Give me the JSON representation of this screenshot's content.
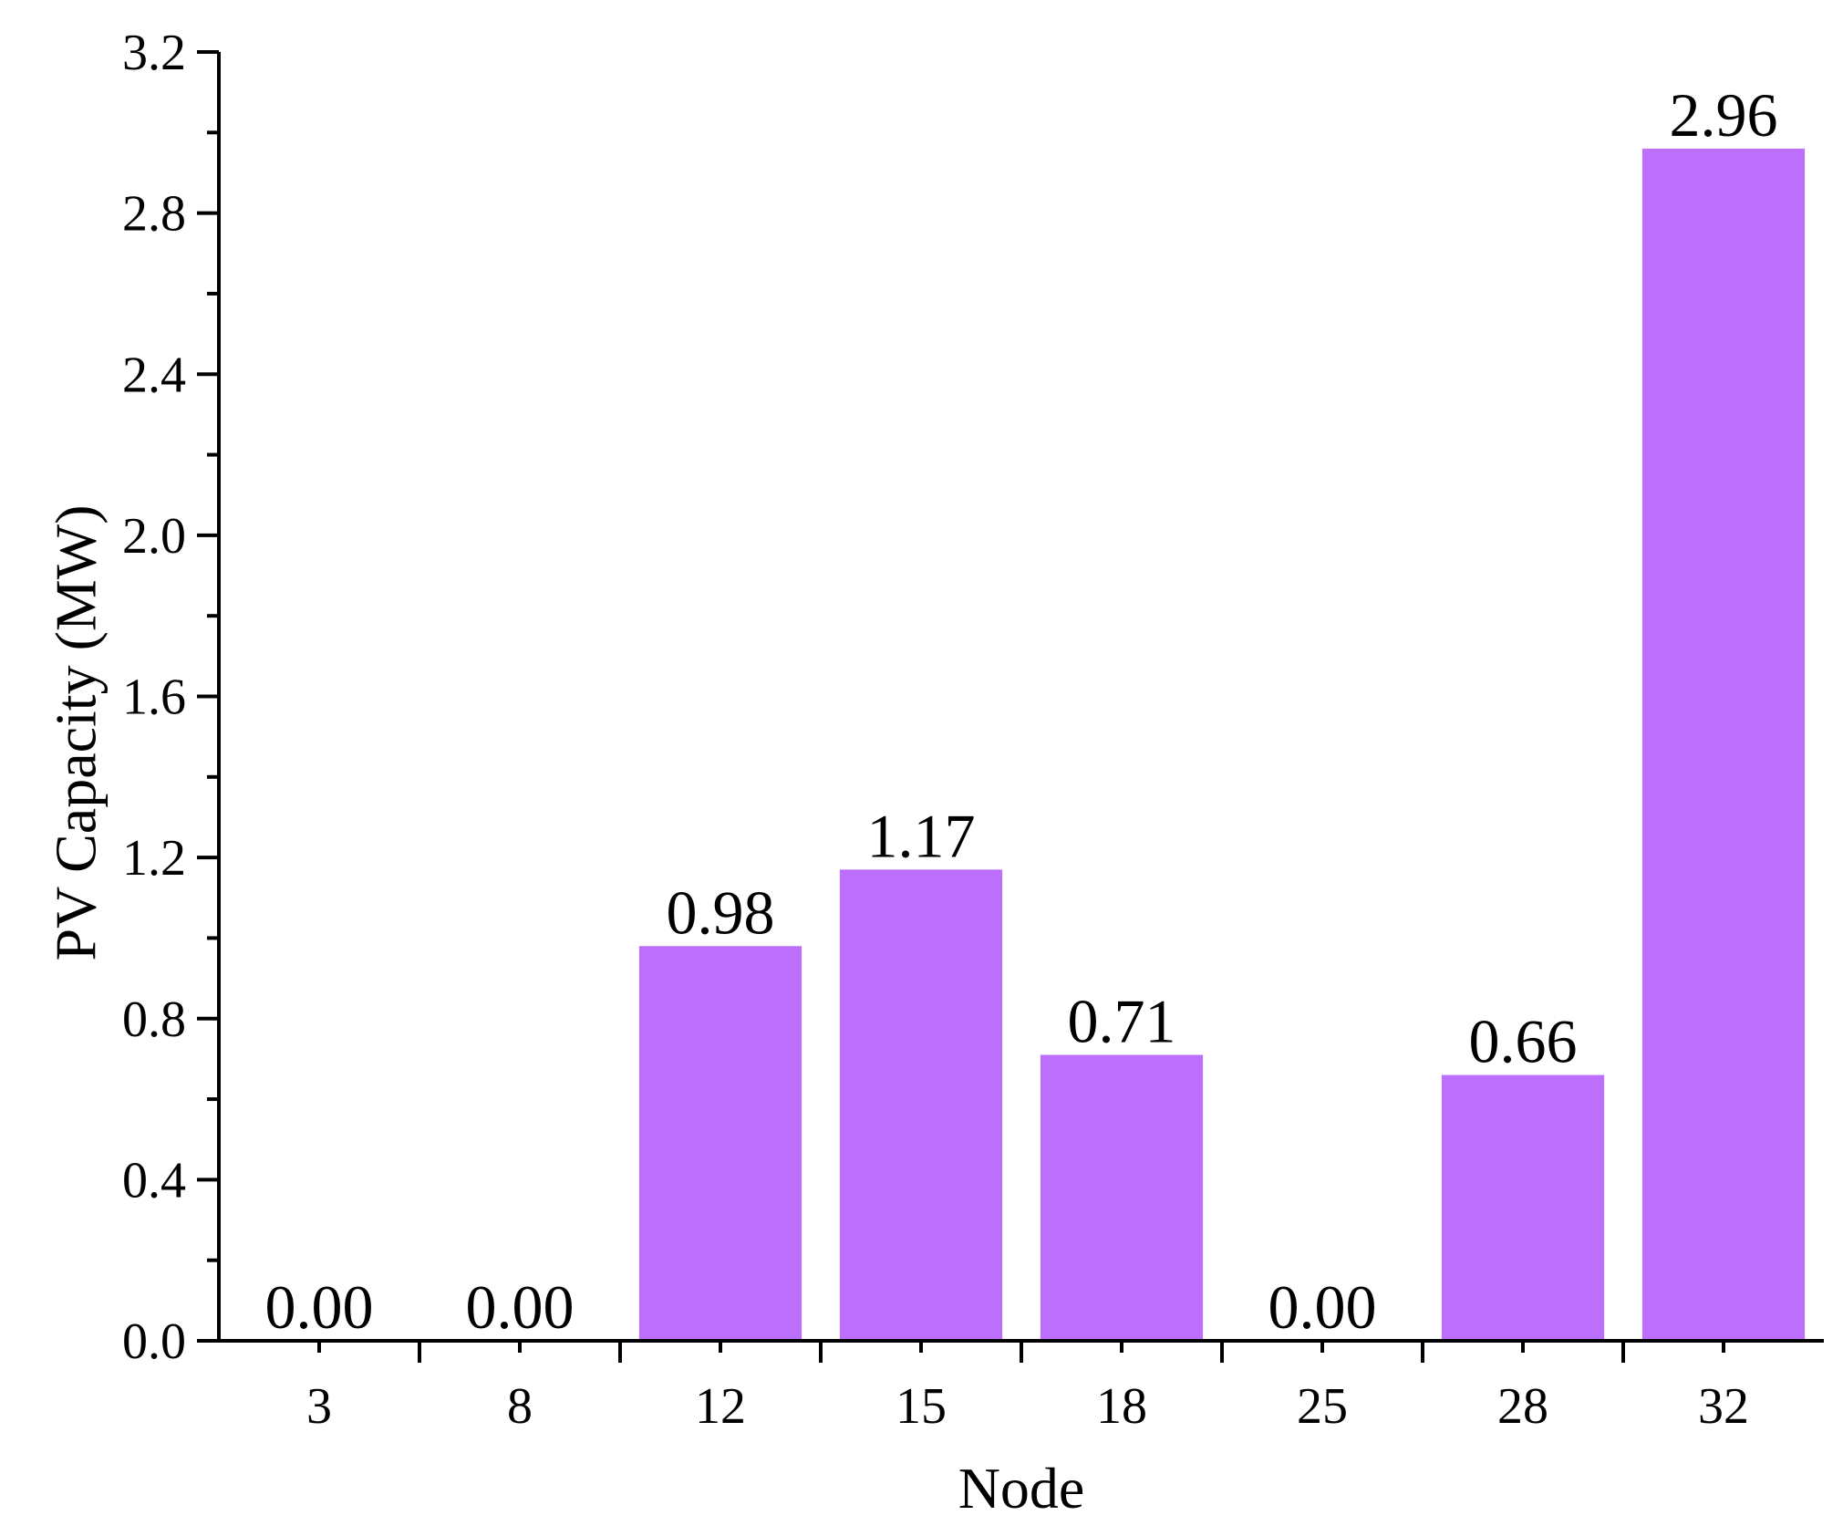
{
  "chart_data": {
    "type": "bar",
    "title": "",
    "xlabel": "Node",
    "ylabel": "PV Capacity (MW)",
    "categories": [
      "3",
      "8",
      "12",
      "15",
      "18",
      "25",
      "28",
      "32"
    ],
    "values": [
      0.0,
      0.0,
      0.98,
      1.17,
      0.71,
      0.0,
      0.66,
      2.96
    ],
    "data_labels": [
      "0.00",
      "0.00",
      "0.98",
      "1.17",
      "0.71",
      "0.00",
      "0.66",
      "2.96"
    ],
    "ylim": [
      0,
      3.2
    ],
    "yticks": [
      "0.0",
      "0.4",
      "0.8",
      "1.2",
      "1.6",
      "2.0",
      "2.4",
      "2.8",
      "3.2"
    ],
    "bar_color": "#bb6ffc",
    "grid": false,
    "legend": "none"
  }
}
